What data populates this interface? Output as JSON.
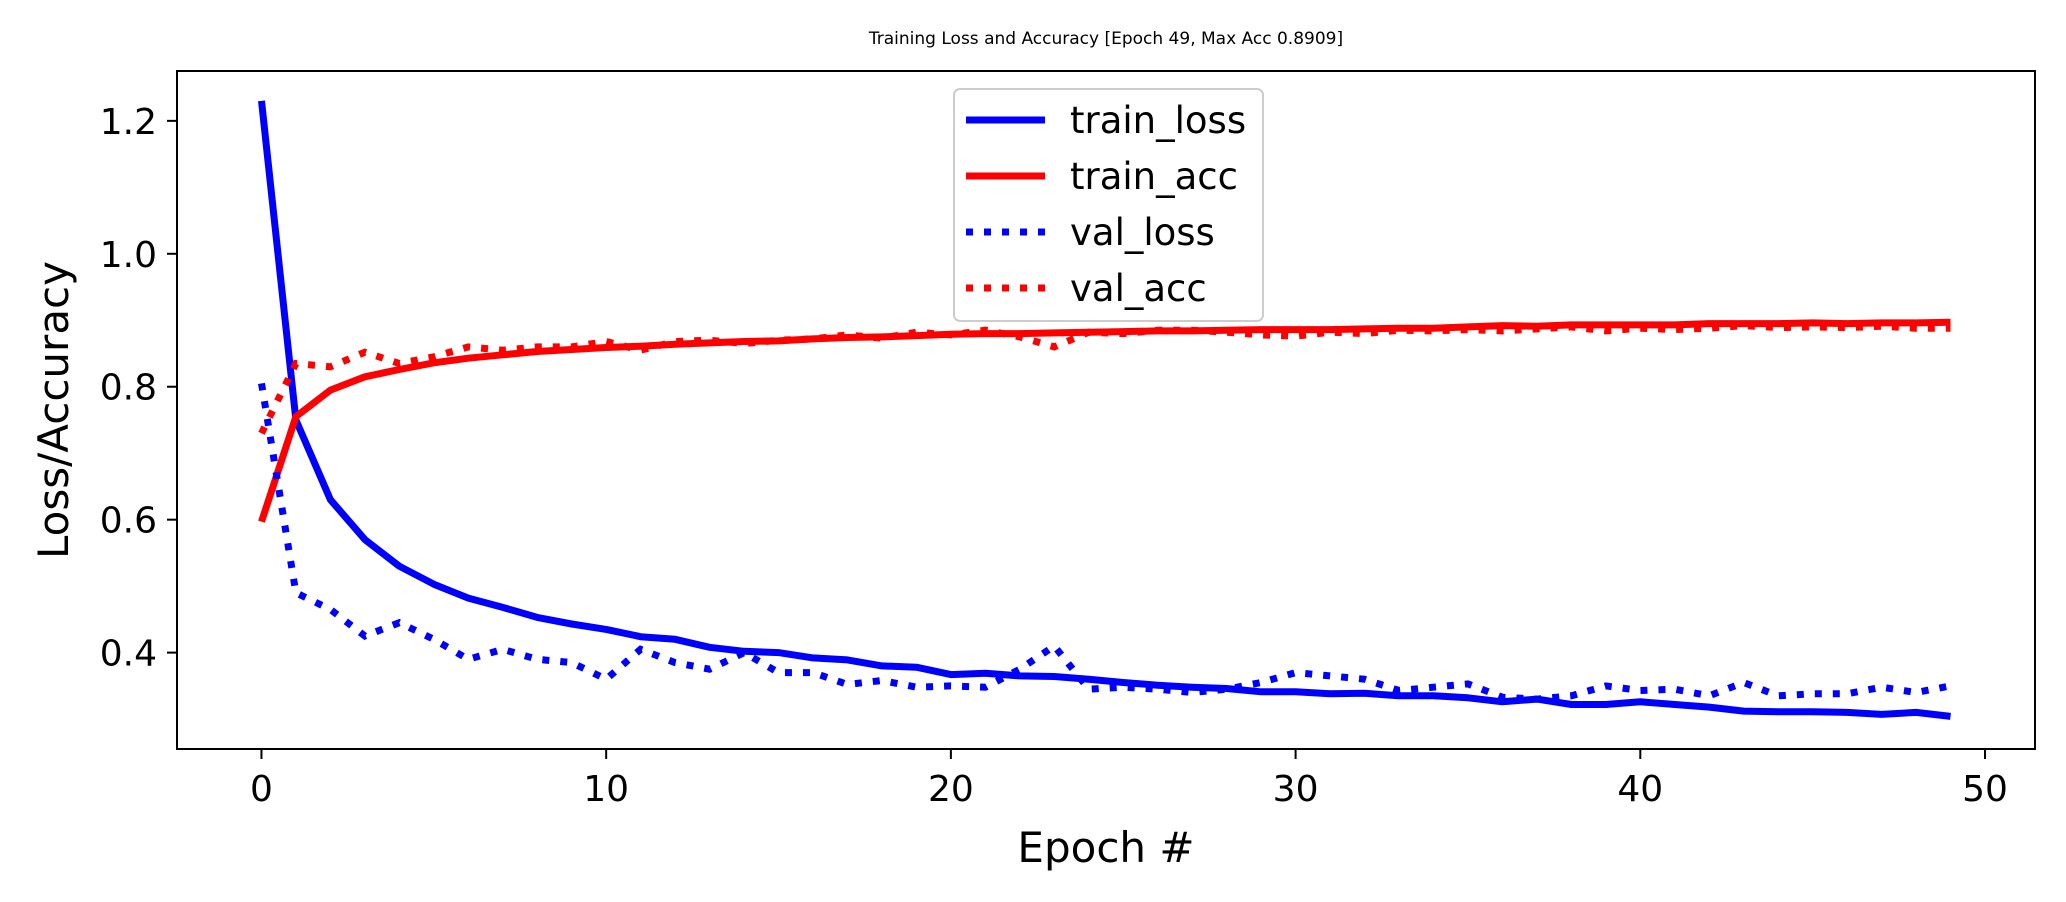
{
  "chart_data": {
    "type": "line",
    "title": "Training Loss and Accuracy [Epoch 49, Max Acc 0.8909]",
    "xlabel": "Epoch #",
    "ylabel": "Loss/Accuracy",
    "xlim": [
      -2.45,
      51.45
    ],
    "ylim": [
      0.255,
      1.275
    ],
    "xticks": [
      0,
      10,
      20,
      30,
      40,
      50
    ],
    "xtick_labels": [
      "0",
      "10",
      "20",
      "30",
      "40",
      "50"
    ],
    "yticks": [
      0.4,
      0.6,
      0.8,
      1.0,
      1.2
    ],
    "ytick_labels": [
      "0.4",
      "0.6",
      "0.8",
      "1.0",
      "1.2"
    ],
    "grid": false,
    "legend_position": "top-center",
    "colors": {
      "loss": "#0000ff",
      "acc": "#ff0000"
    },
    "x": [
      0,
      1,
      2,
      3,
      4,
      5,
      6,
      7,
      8,
      9,
      10,
      11,
      12,
      13,
      14,
      15,
      16,
      17,
      18,
      19,
      20,
      21,
      22,
      23,
      24,
      25,
      26,
      27,
      28,
      29,
      30,
      31,
      32,
      33,
      34,
      35,
      36,
      37,
      38,
      39,
      40,
      41,
      42,
      43,
      44,
      45,
      46,
      47,
      48,
      49
    ],
    "series": [
      {
        "name": "train_loss",
        "style": "solid",
        "color": "#0000ff",
        "values": [
          1.23,
          0.75,
          0.63,
          0.57,
          0.53,
          0.503,
          0.482,
          0.468,
          0.453,
          0.443,
          0.435,
          0.424,
          0.42,
          0.408,
          0.402,
          0.4,
          0.392,
          0.389,
          0.38,
          0.378,
          0.367,
          0.369,
          0.365,
          0.364,
          0.36,
          0.355,
          0.351,
          0.348,
          0.346,
          0.341,
          0.341,
          0.338,
          0.339,
          0.335,
          0.335,
          0.332,
          0.326,
          0.33,
          0.322,
          0.322,
          0.326,
          0.322,
          0.318,
          0.312,
          0.311,
          0.311,
          0.31,
          0.307,
          0.31,
          0.304
        ]
      },
      {
        "name": "train_acc",
        "style": "solid",
        "color": "#ff0000",
        "values": [
          0.597,
          0.755,
          0.795,
          0.815,
          0.826,
          0.836,
          0.843,
          0.848,
          0.853,
          0.856,
          0.859,
          0.861,
          0.864,
          0.866,
          0.868,
          0.869,
          0.872,
          0.874,
          0.875,
          0.877,
          0.879,
          0.88,
          0.88,
          0.881,
          0.882,
          0.883,
          0.884,
          0.884,
          0.885,
          0.886,
          0.886,
          0.886,
          0.887,
          0.888,
          0.888,
          0.89,
          0.892,
          0.891,
          0.893,
          0.893,
          0.893,
          0.893,
          0.895,
          0.895,
          0.895,
          0.896,
          0.895,
          0.896,
          0.896,
          0.897
        ]
      },
      {
        "name": "val_loss",
        "style": "dotted",
        "color": "#0000ff",
        "values": [
          0.805,
          0.49,
          0.465,
          0.425,
          0.445,
          0.42,
          0.39,
          0.405,
          0.39,
          0.385,
          0.36,
          0.405,
          0.385,
          0.375,
          0.4,
          0.37,
          0.37,
          0.352,
          0.358,
          0.348,
          0.35,
          0.348,
          0.375,
          0.41,
          0.345,
          0.348,
          0.345,
          0.34,
          0.345,
          0.355,
          0.37,
          0.365,
          0.36,
          0.343,
          0.348,
          0.353,
          0.333,
          0.33,
          0.335,
          0.35,
          0.343,
          0.345,
          0.335,
          0.355,
          0.335,
          0.338,
          0.338,
          0.348,
          0.34,
          0.35
        ]
      },
      {
        "name": "val_acc",
        "style": "dotted",
        "color": "#ff0000",
        "values": [
          0.73,
          0.835,
          0.83,
          0.852,
          0.835,
          0.845,
          0.86,
          0.855,
          0.86,
          0.86,
          0.868,
          0.855,
          0.868,
          0.87,
          0.865,
          0.87,
          0.872,
          0.878,
          0.873,
          0.882,
          0.878,
          0.885,
          0.875,
          0.86,
          0.882,
          0.88,
          0.885,
          0.885,
          0.882,
          0.878,
          0.876,
          0.882,
          0.88,
          0.885,
          0.884,
          0.886,
          0.884,
          0.887,
          0.89,
          0.884,
          0.888,
          0.886,
          0.888,
          0.892,
          0.889,
          0.89,
          0.889,
          0.891,
          0.888,
          0.888
        ]
      }
    ]
  }
}
